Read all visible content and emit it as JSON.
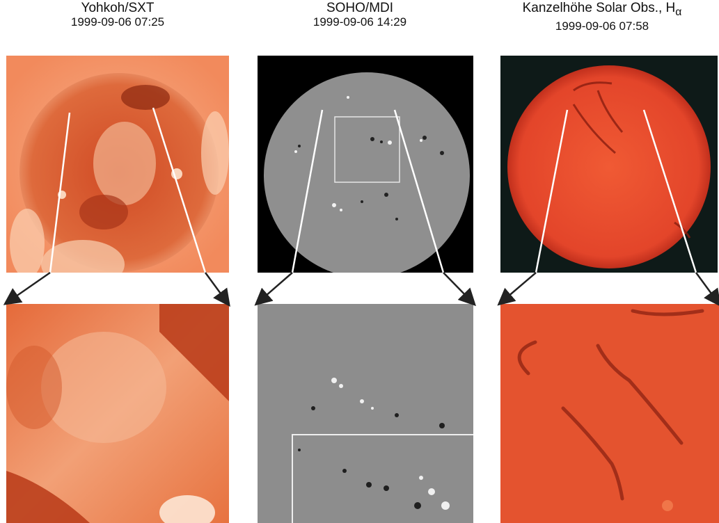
{
  "panels": [
    {
      "instrument": "Yohkoh/SXT",
      "datetime": "1999-09-06  07:25"
    },
    {
      "instrument": "SOHO/MDI",
      "datetime": "1999-09-06  14:29"
    },
    {
      "instrument_prefix": "Kanzelhöhe Solar Obs., H",
      "instrument_sub": "α",
      "datetime": "1999-09-06  07:58"
    }
  ],
  "colors": {
    "sxt_bg": "#f08a5a",
    "sxt_disk": "#d9542c",
    "mdi_bg": "#000000",
    "mdi_disk": "#8c8c8c",
    "halpha_bg": "#0d1a18",
    "halpha_disk": "#e8452a",
    "arrow": "#222222"
  }
}
